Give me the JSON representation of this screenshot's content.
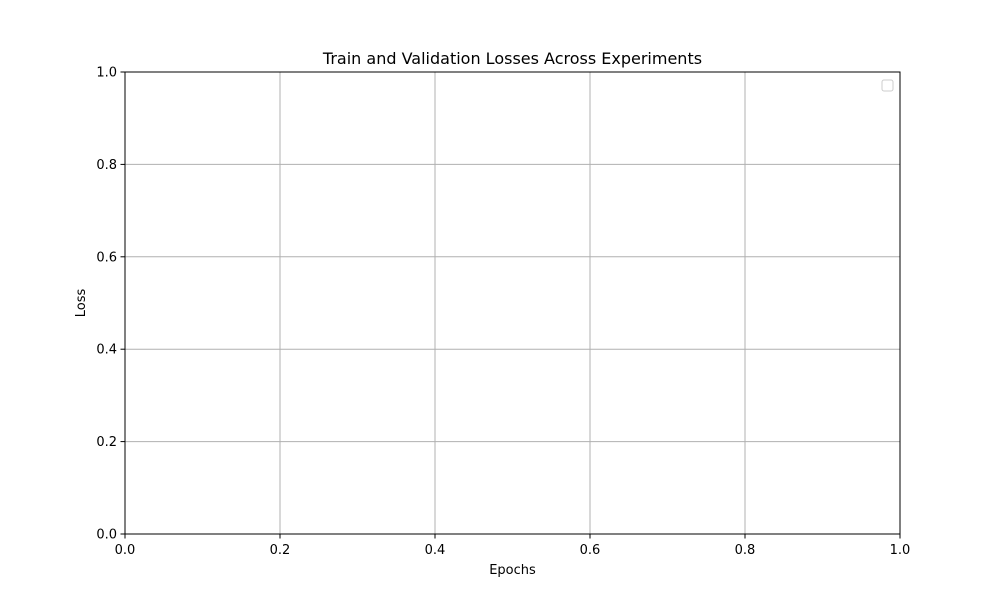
{
  "chart_data": {
    "type": "line",
    "title": "Train and Validation Losses Across Experiments",
    "xlabel": "Epochs",
    "ylabel": "Loss",
    "xlim": [
      0.0,
      1.0
    ],
    "ylim": [
      0.0,
      1.0
    ],
    "x_ticks": [
      0.0,
      0.2,
      0.4,
      0.6,
      0.8,
      1.0
    ],
    "y_ticks": [
      0.0,
      0.2,
      0.4,
      0.6,
      0.8,
      1.0
    ],
    "x_tick_labels": [
      "0.0",
      "0.2",
      "0.4",
      "0.6",
      "0.8",
      "1.0"
    ],
    "y_tick_labels": [
      "0.0",
      "0.2",
      "0.4",
      "0.6",
      "0.8",
      "1.0"
    ],
    "series": [],
    "grid": true,
    "legend": {
      "position": "top-right",
      "entries": []
    },
    "colors": {
      "grid": "#b0b0b0",
      "axes": "#000000",
      "legend_border": "#cccccc"
    }
  }
}
